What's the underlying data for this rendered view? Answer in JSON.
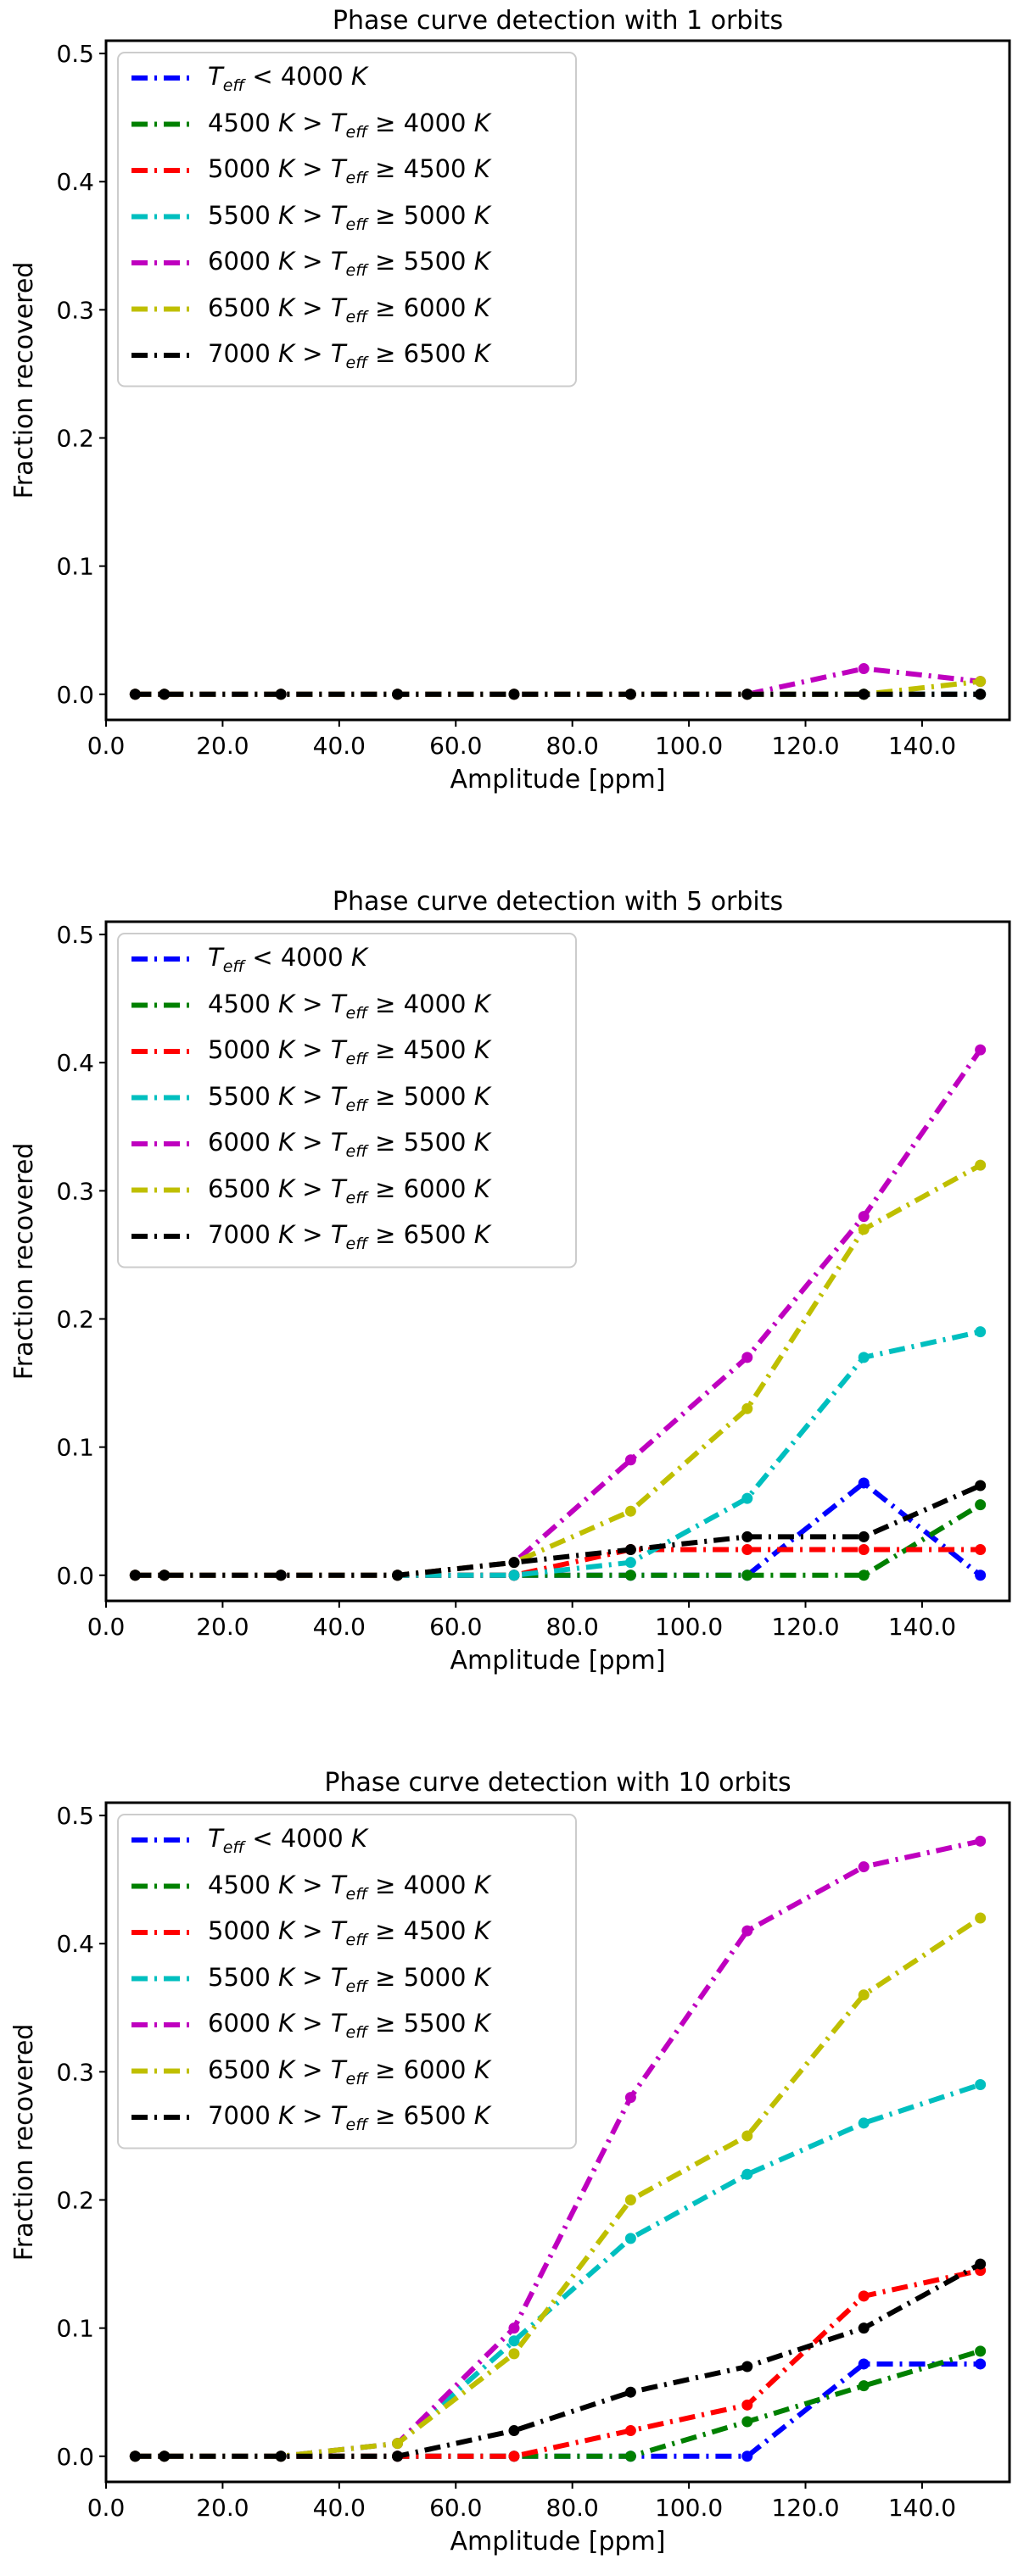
{
  "chart_data": [
    {
      "type": "line",
      "title": "Phase curve detection with 1 orbits",
      "xlabel": "Amplitude [ppm]",
      "ylabel": "Fraction recovered",
      "xlim": [
        0,
        155
      ],
      "ylim": [
        -0.02,
        0.51
      ],
      "xticks": [
        "0.0",
        "20.0",
        "40.0",
        "60.0",
        "80.0",
        "100.0",
        "120.0",
        "140.0"
      ],
      "yticks": [
        "0.0",
        "0.1",
        "0.2",
        "0.3",
        "0.4",
        "0.5"
      ],
      "x": [
        5,
        10,
        30,
        50,
        70,
        90,
        110,
        130,
        150
      ],
      "legend_position": "top-left",
      "series": [
        {
          "name": "T_eff < 4000 K",
          "legend_label": "<i>T<sub>eff</sub></i> < 4000 <i>K</i>",
          "color": "#0000ff",
          "linestyle": "dashdot",
          "values": [
            0,
            0,
            0,
            0,
            0,
            0,
            0,
            0,
            0
          ]
        },
        {
          "name": "4500 K > T_eff ≥ 4000 K",
          "legend_label": "4500 <i>K</i> > <i>T<sub>eff</sub></i> ≥ 4000 <i>K</i>",
          "color": "#008000",
          "linestyle": "dashdot",
          "values": [
            0,
            0,
            0,
            0,
            0,
            0,
            0,
            0,
            0
          ]
        },
        {
          "name": "5000 K > T_eff ≥ 4500 K",
          "legend_label": "5000 <i>K</i> > <i>T<sub>eff</sub></i> ≥ 4500 <i>K</i>",
          "color": "#ff0000",
          "linestyle": "dashdot",
          "values": [
            0,
            0,
            0,
            0,
            0,
            0,
            0,
            0,
            0
          ]
        },
        {
          "name": "5500 K > T_eff ≥ 5000 K",
          "legend_label": "5500 <i>K</i> > <i>T<sub>eff</sub></i> ≥ 5000 <i>K</i>",
          "color": "#00bfbf",
          "linestyle": "dashdot",
          "values": [
            0,
            0,
            0,
            0,
            0,
            0,
            0,
            0,
            0
          ]
        },
        {
          "name": "6000 K > T_eff ≥ 5500 K",
          "legend_label": "6000 <i>K</i> > <i>T<sub>eff</sub></i> ≥ 5500 <i>K</i>",
          "color": "#bf00bf",
          "linestyle": "dashdot",
          "values": [
            0,
            0,
            0,
            0,
            0,
            0,
            0,
            0.02,
            0.01
          ]
        },
        {
          "name": "6500 K > T_eff ≥ 6000 K",
          "legend_label": "6500 <i>K</i> > <i>T<sub>eff</sub></i> ≥ 6000 <i>K</i>",
          "color": "#bfbf00",
          "linestyle": "dashdot",
          "values": [
            0,
            0,
            0,
            0,
            0,
            0,
            0,
            0,
            0.01
          ]
        },
        {
          "name": "7000 K > T_eff ≥ 6500 K",
          "legend_label": "7000 <i>K</i> > <i>T<sub>eff</sub></i> ≥ 6500 <i>K</i>",
          "color": "#000000",
          "linestyle": "dashdot",
          "values": [
            0,
            0,
            0,
            0,
            0,
            0,
            0,
            0,
            0
          ]
        }
      ]
    },
    {
      "type": "line",
      "title": "Phase curve detection with 5 orbits",
      "xlabel": "Amplitude [ppm]",
      "ylabel": "Fraction recovered",
      "xlim": [
        0,
        155
      ],
      "ylim": [
        -0.02,
        0.51
      ],
      "xticks": [
        "0.0",
        "20.0",
        "40.0",
        "60.0",
        "80.0",
        "100.0",
        "120.0",
        "140.0"
      ],
      "yticks": [
        "0.0",
        "0.1",
        "0.2",
        "0.3",
        "0.4",
        "0.5"
      ],
      "x": [
        5,
        10,
        30,
        50,
        70,
        90,
        110,
        130,
        150
      ],
      "legend_position": "top-left",
      "series": [
        {
          "name": "T_eff < 4000 K",
          "legend_label": "<i>T<sub>eff</sub></i> < 4000 <i>K</i>",
          "color": "#0000ff",
          "linestyle": "dashdot",
          "values": [
            0,
            0,
            0,
            0,
            0,
            0,
            0,
            0.072,
            0
          ]
        },
        {
          "name": "4500 K > T_eff ≥ 4000 K",
          "legend_label": "4500 <i>K</i> > <i>T<sub>eff</sub></i> ≥ 4000 <i>K</i>",
          "color": "#008000",
          "linestyle": "dashdot",
          "values": [
            0,
            0,
            0,
            0,
            0,
            0,
            0,
            0,
            0.055
          ]
        },
        {
          "name": "5000 K > T_eff ≥ 4500 K",
          "legend_label": "5000 <i>K</i> > <i>T<sub>eff</sub></i> ≥ 4500 <i>K</i>",
          "color": "#ff0000",
          "linestyle": "dashdot",
          "values": [
            0,
            0,
            0,
            0,
            0,
            0.02,
            0.02,
            0.02,
            0.02
          ]
        },
        {
          "name": "5500 K > T_eff ≥ 5000 K",
          "legend_label": "5500 <i>K</i> > <i>T<sub>eff</sub></i> ≥ 5000 <i>K</i>",
          "color": "#00bfbf",
          "linestyle": "dashdot",
          "values": [
            0,
            0,
            0,
            0,
            0,
            0.01,
            0.06,
            0.17,
            0.19
          ]
        },
        {
          "name": "6000 K > T_eff ≥ 5500 K",
          "legend_label": "6000 <i>K</i> > <i>T<sub>eff</sub></i> ≥ 5500 <i>K</i>",
          "color": "#bf00bf",
          "linestyle": "dashdot",
          "values": [
            0,
            0,
            0,
            0,
            0.01,
            0.09,
            0.17,
            0.28,
            0.41
          ]
        },
        {
          "name": "6500 K > T_eff ≥ 6000 K",
          "legend_label": "6500 <i>K</i> > <i>T<sub>eff</sub></i> ≥ 6000 <i>K</i>",
          "color": "#bfbf00",
          "linestyle": "dashdot",
          "values": [
            0,
            0,
            0,
            0,
            0.01,
            0.05,
            0.13,
            0.27,
            0.32
          ]
        },
        {
          "name": "7000 K > T_eff ≥ 6500 K",
          "legend_label": "7000 <i>K</i> > <i>T<sub>eff</sub></i> ≥ 6500 <i>K</i>",
          "color": "#000000",
          "linestyle": "dashdot",
          "values": [
            0,
            0,
            0,
            0,
            0.01,
            0.02,
            0.03,
            0.03,
            0.07
          ]
        }
      ]
    },
    {
      "type": "line",
      "title": "Phase curve detection with 10 orbits",
      "xlabel": "Amplitude [ppm]",
      "ylabel": "Fraction recovered",
      "xlim": [
        0,
        155
      ],
      "ylim": [
        -0.02,
        0.51
      ],
      "xticks": [
        "0.0",
        "20.0",
        "40.0",
        "60.0",
        "80.0",
        "100.0",
        "120.0",
        "140.0"
      ],
      "yticks": [
        "0.0",
        "0.1",
        "0.2",
        "0.3",
        "0.4",
        "0.5"
      ],
      "x": [
        5,
        10,
        30,
        50,
        70,
        90,
        110,
        130,
        150
      ],
      "legend_position": "top-left",
      "series": [
        {
          "name": "T_eff < 4000 K",
          "legend_label": "<i>T<sub>eff</sub></i> < 4000 <i>K</i>",
          "color": "#0000ff",
          "linestyle": "dashdot",
          "values": [
            0,
            0,
            0,
            0,
            0,
            0,
            0,
            0.072,
            0.072
          ]
        },
        {
          "name": "4500 K > T_eff ≥ 4000 K",
          "legend_label": "4500 <i>K</i> > <i>T<sub>eff</sub></i> ≥ 4000 <i>K</i>",
          "color": "#008000",
          "linestyle": "dashdot",
          "values": [
            0,
            0,
            0,
            0,
            0,
            0,
            0.027,
            0.055,
            0.082
          ]
        },
        {
          "name": "5000 K > T_eff ≥ 4500 K",
          "legend_label": "5000 <i>K</i> > <i>T<sub>eff</sub></i> ≥ 4500 <i>K</i>",
          "color": "#ff0000",
          "linestyle": "dashdot",
          "values": [
            0,
            0,
            0,
            0,
            0,
            0.02,
            0.04,
            0.125,
            0.145
          ]
        },
        {
          "name": "5500 K > T_eff ≥ 5000 K",
          "legend_label": "5500 <i>K</i> > <i>T<sub>eff</sub></i> ≥ 5000 <i>K</i>",
          "color": "#00bfbf",
          "linestyle": "dashdot",
          "values": [
            0,
            0,
            0,
            0.01,
            0.09,
            0.17,
            0.22,
            0.26,
            0.29
          ]
        },
        {
          "name": "6000 K > T_eff ≥ 5500 K",
          "legend_label": "6000 <i>K</i> > <i>T<sub>eff</sub></i> ≥ 5500 <i>K</i>",
          "color": "#bf00bf",
          "linestyle": "dashdot",
          "values": [
            0,
            0,
            0,
            0.01,
            0.1,
            0.28,
            0.41,
            0.46,
            0.48
          ]
        },
        {
          "name": "6500 K > T_eff ≥ 6000 K",
          "legend_label": "6500 <i>K</i> > <i>T<sub>eff</sub></i> ≥ 6000 <i>K</i>",
          "color": "#bfbf00",
          "linestyle": "dashdot",
          "values": [
            0,
            0,
            0,
            0.01,
            0.08,
            0.2,
            0.25,
            0.36,
            0.42
          ]
        },
        {
          "name": "7000 K > T_eff ≥ 6500 K",
          "legend_label": "7000 <i>K</i> > <i>T<sub>eff</sub></i> ≥ 6500 <i>K</i>",
          "color": "#000000",
          "linestyle": "dashdot",
          "values": [
            0,
            0,
            0,
            0,
            0.02,
            0.05,
            0.07,
            0.1,
            0.15
          ]
        }
      ]
    }
  ]
}
